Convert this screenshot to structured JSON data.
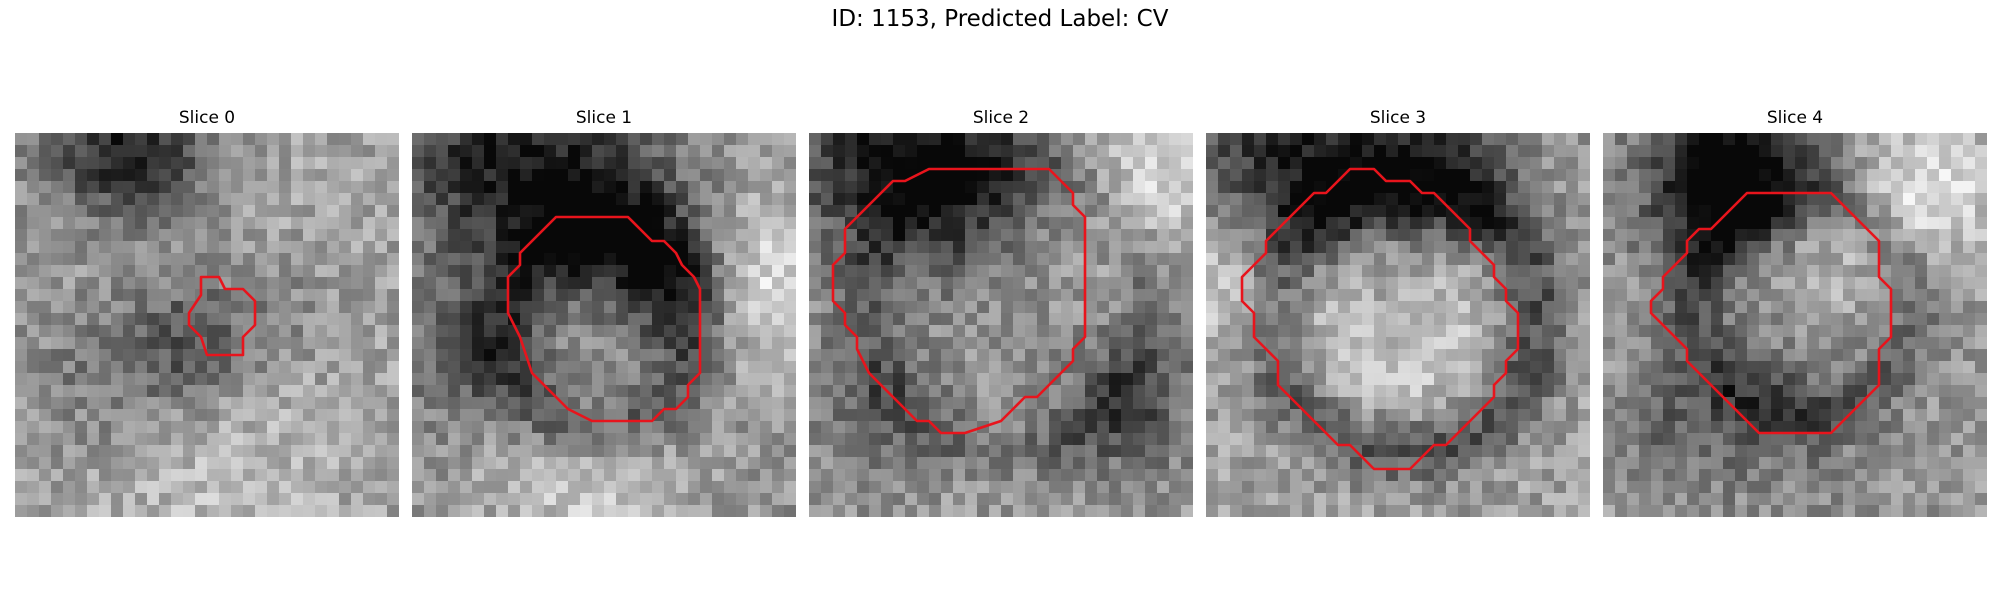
{
  "figure": {
    "title": "ID: 1153, Predicted Label: CV"
  },
  "panels": [
    {
      "title": "Slice 0"
    },
    {
      "title": "Slice 1"
    },
    {
      "title": "Slice 2"
    },
    {
      "title": "Slice 3"
    },
    {
      "title": "Slice 4"
    }
  ],
  "colors": {
    "contour": "#e8141c",
    "background": "#ffffff"
  }
}
